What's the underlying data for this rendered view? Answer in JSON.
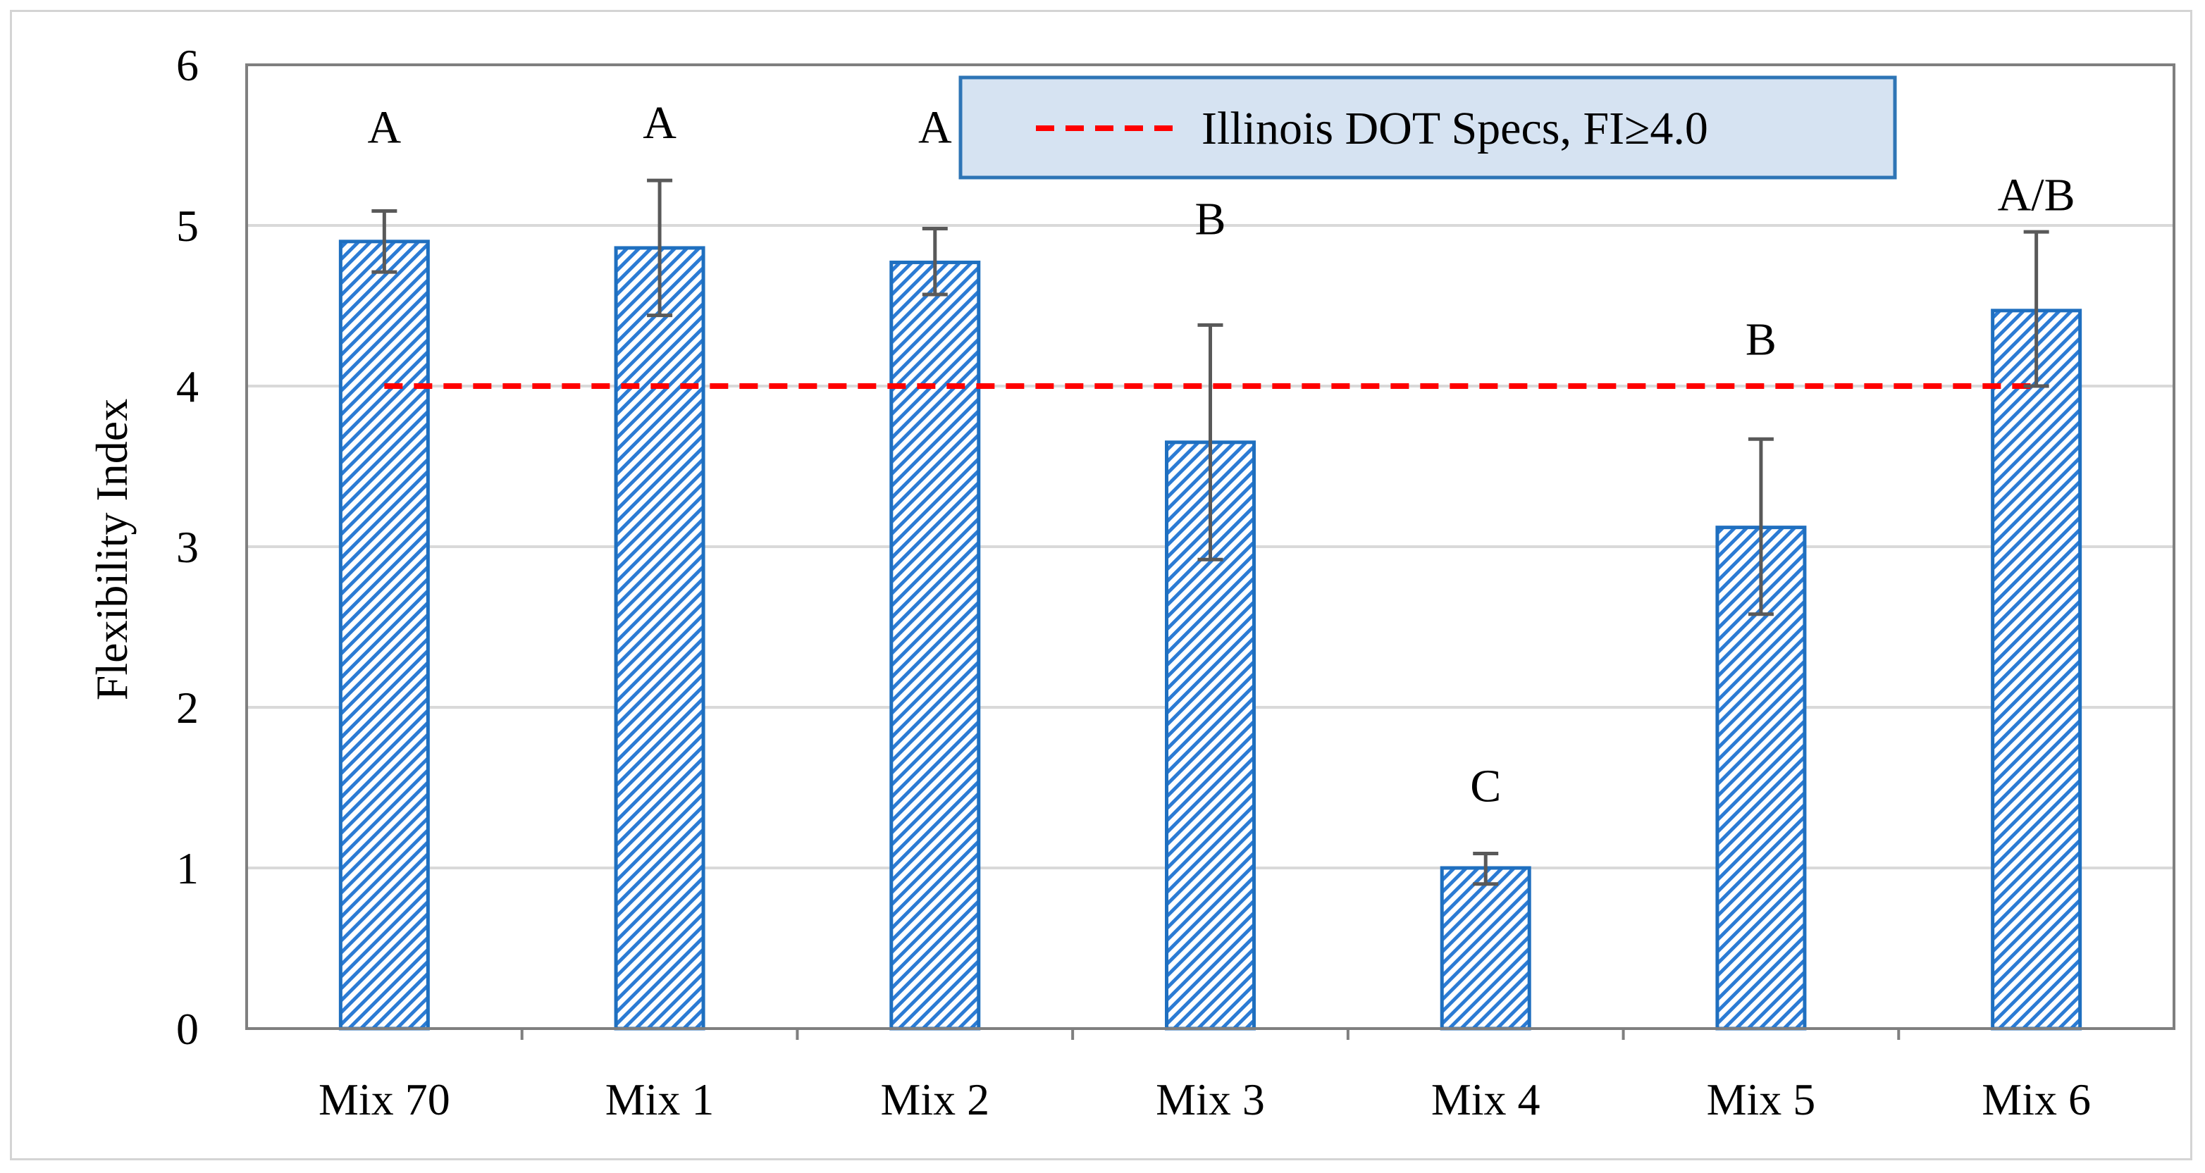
{
  "chart_data": {
    "type": "bar",
    "title": "",
    "xlabel": "",
    "ylabel": "Flexibility Index",
    "ylim": [
      0,
      6
    ],
    "yticks": [
      "0",
      "1",
      "2",
      "3",
      "4",
      "5",
      "6"
    ],
    "grid": true,
    "categories": [
      "Mix 70",
      "Mix 1",
      "Mix 2",
      "Mix 3",
      "Mix 4",
      "Mix 5",
      "Mix 6"
    ],
    "values": [
      4.9,
      4.86,
      4.77,
      3.65,
      1.0,
      3.12,
      4.47
    ],
    "error_low": [
      4.71,
      4.44,
      4.57,
      2.92,
      0.9,
      2.58,
      4.0
    ],
    "error_high": [
      5.09,
      5.28,
      4.98,
      4.38,
      1.09,
      3.67,
      4.96
    ],
    "group_labels": [
      "A",
      "A",
      "A",
      "B",
      "C",
      "B",
      "A/B"
    ],
    "group_label_values": [
      5.62,
      5.65,
      5.62,
      5.05,
      1.52,
      4.3,
      5.2
    ],
    "reference_line": {
      "value": 4.0,
      "from_category": 0,
      "to_category": 6,
      "style": "dashed"
    },
    "legend": {
      "label": "Illinois DOT Specs, FI≥4.0",
      "position": "top-center"
    },
    "colors": {
      "bar_stroke": "#1f6fbf",
      "bar_hatch": "#2b7bd4",
      "reference_line": "#ff0000",
      "error_bar": "#595959",
      "legend_fill": "#d6e3f2",
      "legend_border": "#2e75b6",
      "grid": "#d9d9d9",
      "axis": "#7f7f7f"
    }
  }
}
